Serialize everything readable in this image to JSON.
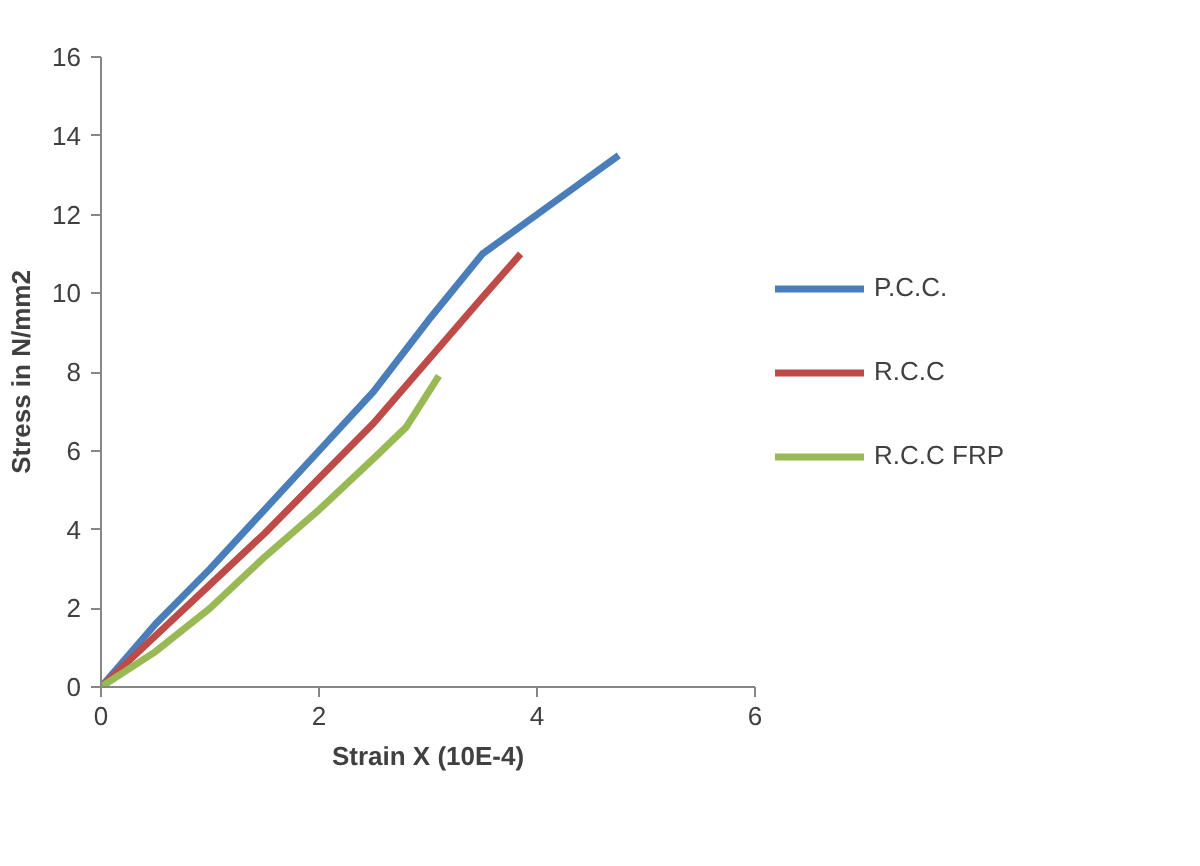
{
  "chart_data": {
    "type": "line",
    "xlabel": "Strain X (10E-4)",
    "ylabel": "Stress in N/mm2",
    "xlim": [
      0,
      6
    ],
    "ylim": [
      0,
      16
    ],
    "xticks": [
      0,
      2,
      4,
      6
    ],
    "yticks": [
      0,
      2,
      4,
      6,
      8,
      10,
      12,
      14,
      16
    ],
    "grid": false,
    "legend": "right",
    "marker": "none",
    "line_style": "solid",
    "series": [
      {
        "name": "P.C.C.",
        "color": "#4a7ebb",
        "x": [
          0,
          0.5,
          1,
          1.5,
          2,
          2.5,
          3,
          3.5,
          4,
          4.4,
          4.75
        ],
        "values": [
          0,
          1.6,
          3.0,
          4.5,
          6.0,
          7.5,
          9.3,
          11.0,
          12.0,
          12.8,
          13.5
        ]
      },
      {
        "name": "R.C.C",
        "color": "#be4b48",
        "x": [
          0,
          0.5,
          1,
          1.5,
          2,
          2.5,
          3,
          3.5,
          3.85
        ],
        "values": [
          0,
          1.3,
          2.6,
          3.9,
          5.3,
          6.7,
          8.3,
          9.9,
          11.0
        ]
      },
      {
        "name": "R.C.C FRP",
        "color": "#98b954",
        "x": [
          0,
          0.5,
          1,
          1.5,
          2,
          2.5,
          2.8,
          3.1
        ],
        "values": [
          0,
          0.9,
          2.0,
          3.3,
          4.5,
          5.8,
          6.6,
          7.9
        ]
      }
    ]
  }
}
